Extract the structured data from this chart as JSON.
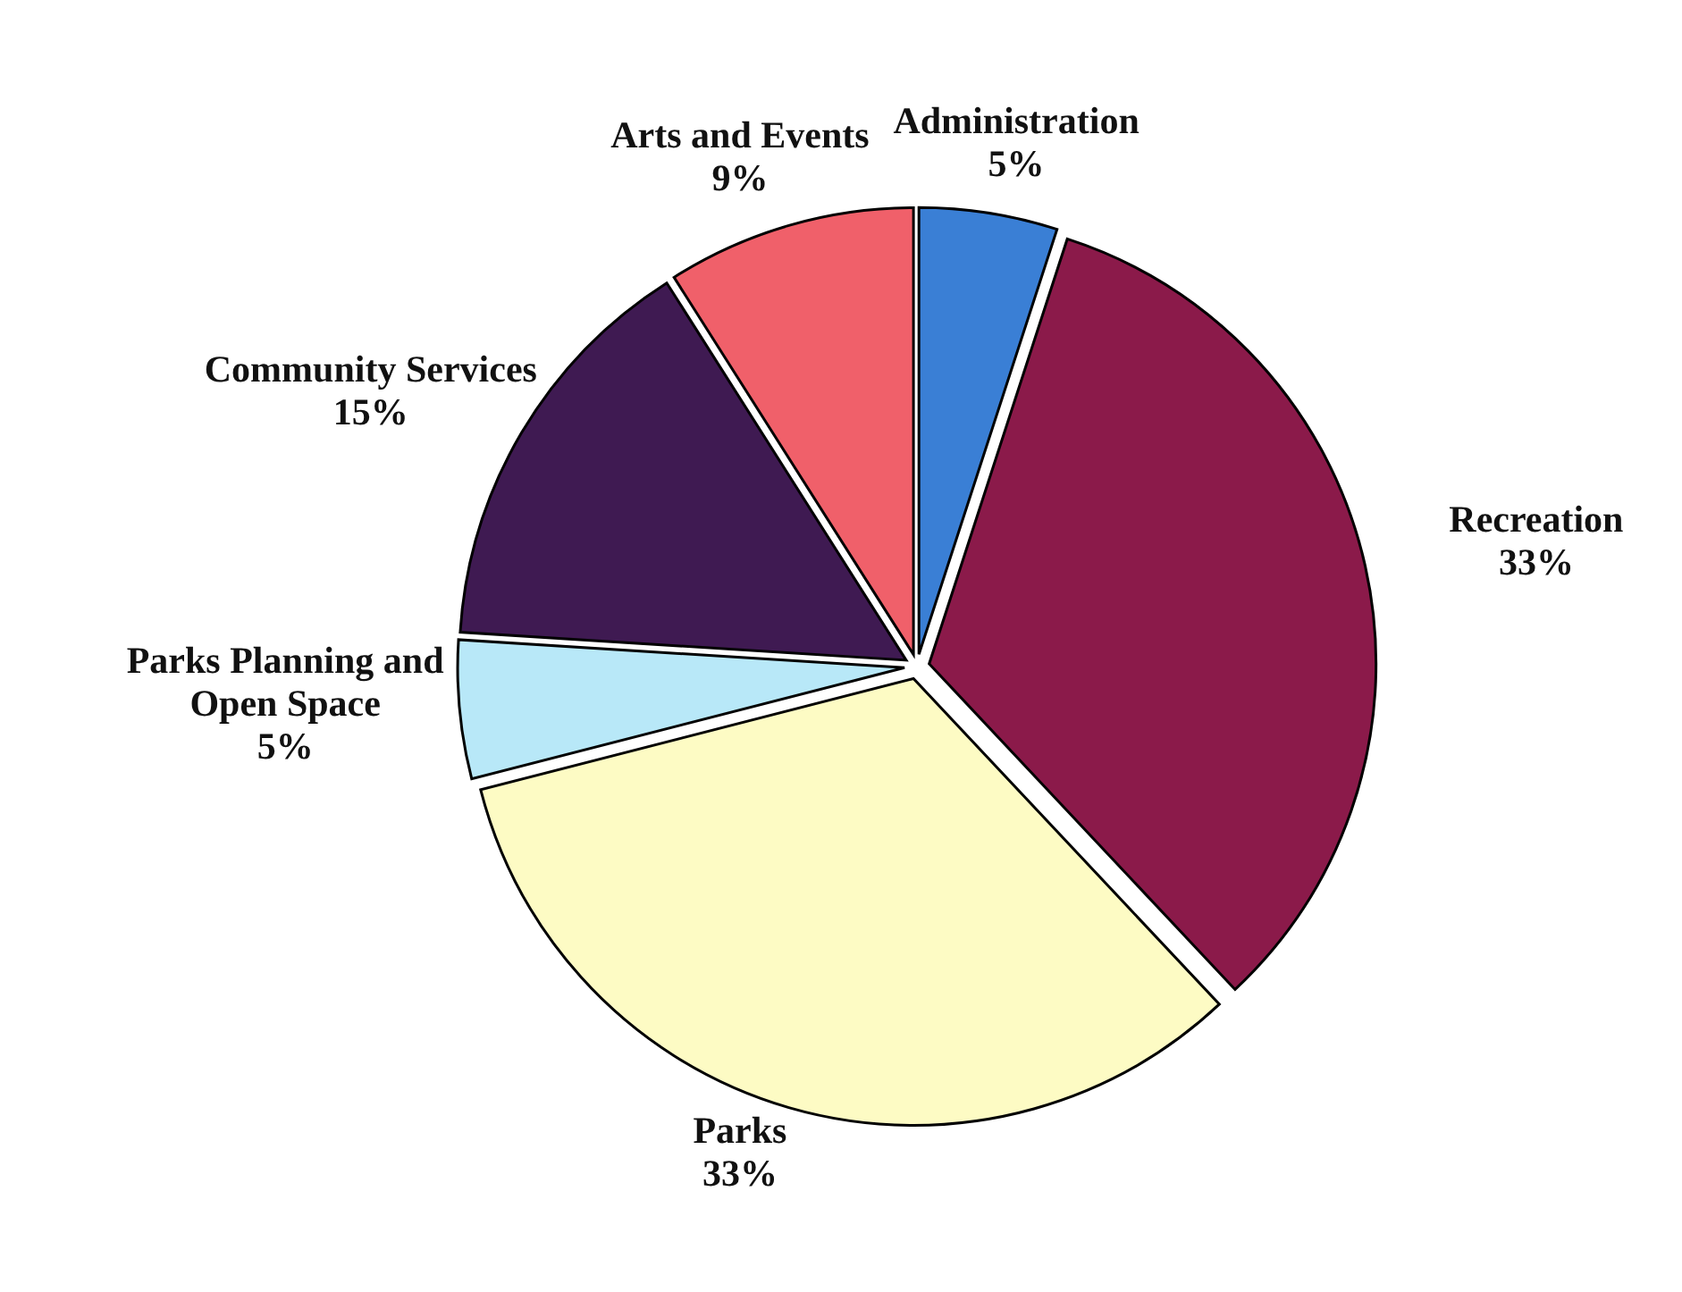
{
  "chart_data": {
    "type": "pie",
    "categories": [
      "Administration",
      "Recreation",
      "Parks",
      "Parks Planning and Open Space",
      "Community Services",
      "Arts and Events"
    ],
    "values": [
      5,
      33,
      33,
      5,
      15,
      9
    ],
    "colors": [
      "#3a7fd5",
      "#8b1a4a",
      "#fdfbc4",
      "#b8e8f8",
      "#3f1a52",
      "#f0606a"
    ],
    "value_labels": [
      "5%",
      "33%",
      "33%",
      "5%",
      "15%",
      "9%"
    ]
  }
}
